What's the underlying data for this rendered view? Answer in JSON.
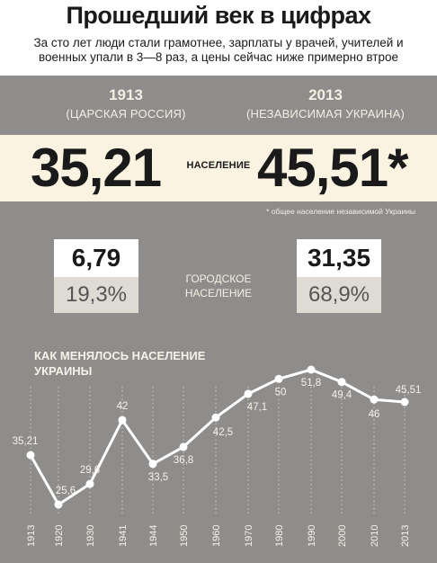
{
  "header": {
    "title": "Прошедший век в цифрах",
    "subtitle": "За сто лет люди стали грамотнее, зарплаты у врачей, учителей и военных упали в 3—8 раз, а цены сейчас ниже примерно втрое"
  },
  "compare": {
    "left_year": "1913",
    "left_period": "(ЦАРСКАЯ РОССИЯ)",
    "right_year": "2013",
    "right_period": "(НЕЗАВИСИМАЯ УКРАИНА)",
    "population_label": "НАСЕЛЕНИЕ",
    "population_left": "35,21",
    "population_right": "45,51*",
    "footnote": "* общее население независимой Украины",
    "urban_label": "ГОРОДСКОЕ НАСЕЛЕНИЕ",
    "urban_left_value": "6,79",
    "urban_left_share": "19,3%",
    "urban_right_value": "31,35",
    "urban_right_share": "68,9%"
  },
  "colors": {
    "panel": "#8e8d8c",
    "band": "#fbf3e2",
    "line": "#ffffff"
  },
  "chart_data": {
    "type": "line",
    "title": "КАК МЕНЯЛОСЬ НАСЕЛЕНИЕ УКРАИНЫ",
    "x": [
      "1913",
      "1920",
      "1930",
      "1941",
      "1944",
      "1950",
      "1960",
      "1970",
      "1980",
      "1990",
      "2000",
      "2010",
      "2013"
    ],
    "values": [
      35.21,
      25.6,
      29.6,
      42,
      33.5,
      36.8,
      42.5,
      47.1,
      50,
      51.8,
      49.4,
      46,
      45.51
    ],
    "labels": [
      "35,21",
      "25,6",
      "29,6",
      "42",
      "33,5",
      "36,8",
      "42,5",
      "47,1",
      "50",
      "51,8",
      "49,4",
      "46",
      "45,51"
    ],
    "grid": "vertical dotted",
    "legend": "none"
  }
}
